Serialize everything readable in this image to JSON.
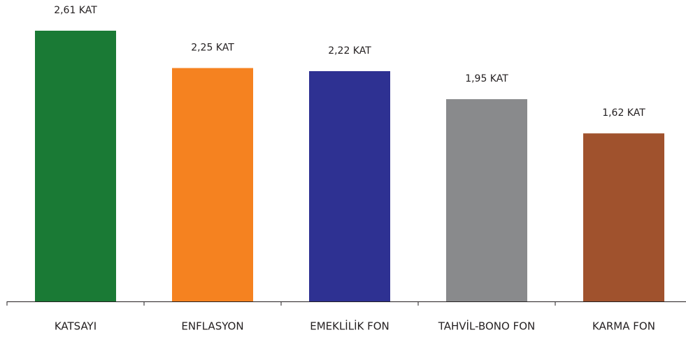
{
  "chart_data": {
    "type": "bar",
    "categories": [
      "KATSAYI",
      "ENFLASYON",
      "EMEKLİLİK FON",
      "TAHVİL-BONO FON",
      "KARMA FON"
    ],
    "values": [
      2.61,
      2.25,
      2.22,
      1.95,
      1.62
    ],
    "value_labels": [
      "2,61 KAT",
      "2,25 KAT",
      "2,22 KAT",
      "1,95 KAT",
      "1,62 KAT"
    ],
    "colors": [
      "#1a7a35",
      "#f58220",
      "#2e3192",
      "#898a8c",
      "#a0522d"
    ]
  }
}
